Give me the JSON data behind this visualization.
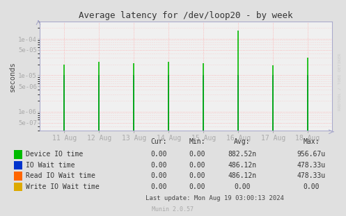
{
  "title": "Average latency for /dev/loop20 - by week",
  "ylabel": "seconds",
  "background_color": "#e0e0e0",
  "plot_background": "#f0f0f0",
  "grid_color": "#ffaaaa",
  "axis_color": "#aaaacc",
  "x_tick_labels": [
    "11 Aug",
    "12 Aug",
    "13 Aug",
    "14 Aug",
    "15 Aug",
    "16 Aug",
    "17 Aug",
    "18 Aug"
  ],
  "x_tick_positions": [
    1,
    2,
    3,
    4,
    5,
    6,
    7,
    8
  ],
  "ylim_min": 3e-07,
  "ylim_max": 0.0003,
  "series": [
    {
      "name": "Device IO time",
      "color": "#00bb00",
      "spike_x": [
        1,
        2,
        3,
        4,
        5,
        6,
        7,
        8
      ],
      "spike_y": [
        2e-05,
        2.3e-05,
        2.2e-05,
        2.4e-05,
        2.2e-05,
        0.00017,
        1.9e-05,
        3e-05
      ]
    },
    {
      "name": "IO Wait time",
      "color": "#0033cc",
      "spike_x": [
        1,
        2,
        3,
        4,
        5,
        6,
        7,
        8
      ],
      "spike_y": [
        1e-05,
        1e-05,
        1e-05,
        1e-05,
        1e-05,
        1e-05,
        1e-05,
        1e-05
      ]
    },
    {
      "name": "Read IO Wait time",
      "color": "#ff6600",
      "spike_x": [
        1,
        2,
        3,
        4,
        5,
        6,
        7,
        8
      ],
      "spike_y": [
        1e-05,
        1e-05,
        1e-05,
        1e-05,
        1e-05,
        1e-05,
        1e-05,
        1e-05
      ]
    },
    {
      "name": "Write IO Wait time",
      "color": "#ddaa00",
      "spike_x": [
        1,
        2,
        3,
        4,
        5,
        6,
        7,
        8
      ],
      "spike_y": [
        4e-07,
        4e-07,
        4e-07,
        4e-07,
        4e-07,
        4e-07,
        4e-07,
        4e-07
      ]
    }
  ],
  "yticks": [
    5e-07,
    1e-06,
    5e-06,
    1e-05,
    5e-05,
    0.0001
  ],
  "ytick_labels": [
    "5e-07",
    "1e-06",
    "5e-06",
    "1e-05",
    "5e-05",
    "1e-04"
  ],
  "legend_entries": [
    {
      "label": "Device IO time",
      "color": "#00bb00",
      "cur": "0.00",
      "min": "0.00",
      "avg": "882.52n",
      "max": "956.67u"
    },
    {
      "label": "IO Wait time",
      "color": "#0033cc",
      "cur": "0.00",
      "min": "0.00",
      "avg": "486.12n",
      "max": "478.33u"
    },
    {
      "label": "Read IO Wait time",
      "color": "#ff6600",
      "cur": "0.00",
      "min": "0.00",
      "avg": "486.12n",
      "max": "478.33u"
    },
    {
      "label": "Write IO Wait time",
      "color": "#ddaa00",
      "cur": "0.00",
      "min": "0.00",
      "avg": "0.00",
      "max": "0.00"
    }
  ],
  "last_update": "Last update: Mon Aug 19 03:00:13 2024",
  "munin_version": "Munin 2.0.57",
  "watermark": "RRDTOOL / TOBI OETIKER"
}
